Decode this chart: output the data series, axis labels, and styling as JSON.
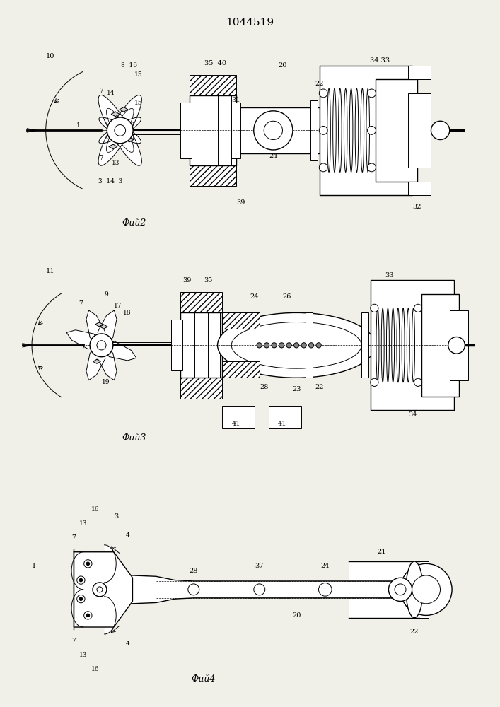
{
  "title": "1044519",
  "background_color": "#f0efe8",
  "fig1_caption": "Фий2",
  "fig2_caption": "Фий3",
  "fig3_caption": "Фий4",
  "lw": 0.7,
  "lw2": 1.0
}
